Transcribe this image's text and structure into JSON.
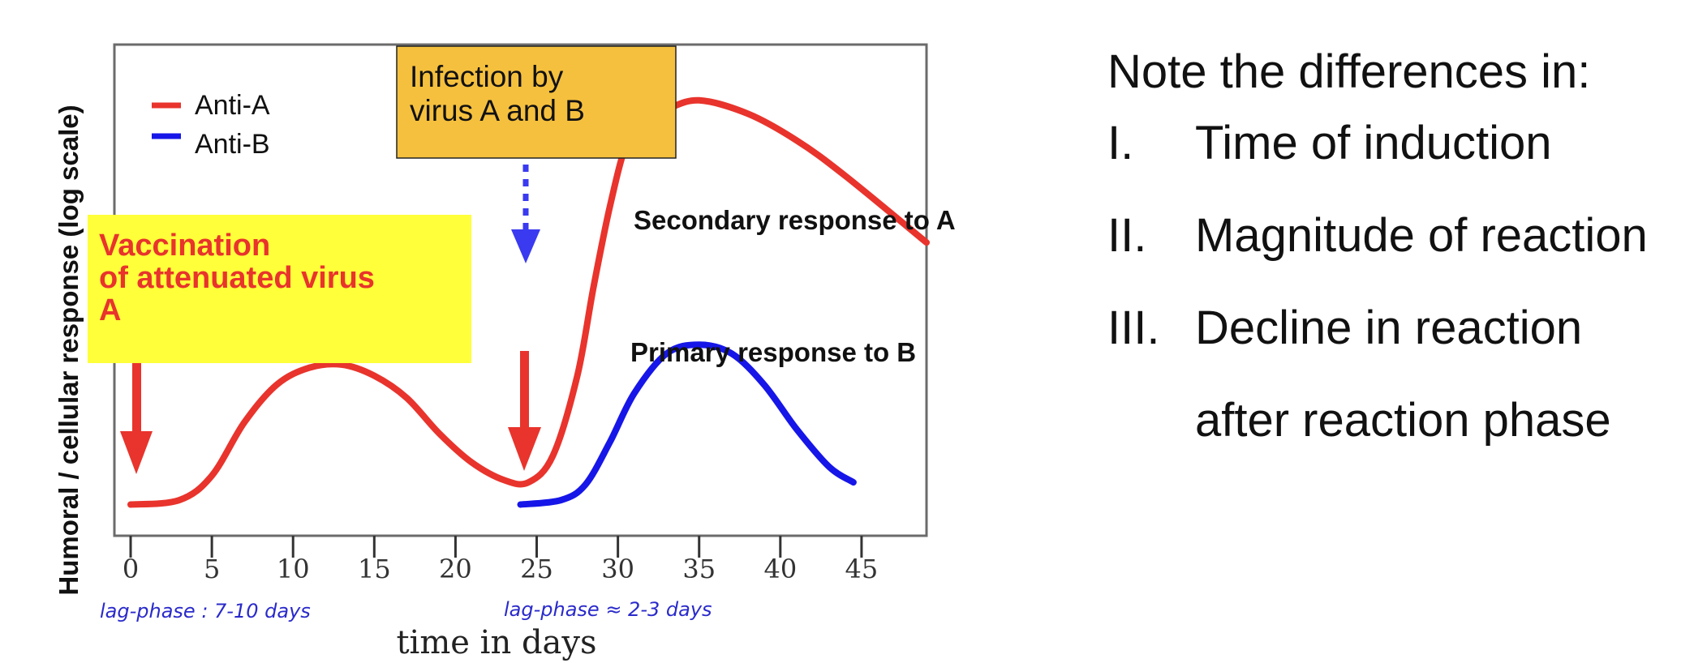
{
  "chart_data": {
    "type": "line",
    "title": "",
    "xlabel": "time in days",
    "ylabel": "Humoral / cellular response (log scale)",
    "x_ticks": [
      0,
      5,
      10,
      15,
      20,
      25,
      30,
      35,
      40,
      45
    ],
    "xlim": [
      -1,
      49
    ],
    "ylim": [
      0,
      10
    ],
    "y_scale": "log",
    "grid": false,
    "legend_position": "top-left",
    "series": [
      {
        "name": "Anti-A",
        "color": "#e8342c",
        "x": [
          0,
          3,
          5,
          7,
          9,
          11,
          13,
          15,
          17,
          19,
          21,
          23,
          24.5,
          26,
          27.5,
          28.5,
          29.5,
          30.5,
          31.5,
          33,
          35,
          38,
          41,
          44,
          49
        ],
        "y": [
          0.1,
          0.2,
          0.75,
          1.95,
          2.8,
          3.18,
          3.25,
          3.0,
          2.5,
          1.7,
          1.05,
          0.65,
          0.6,
          1.2,
          3.0,
          5.0,
          6.8,
          8.2,
          8.75,
          9.0,
          9.2,
          8.9,
          8.3,
          7.5,
          6.0
        ]
      },
      {
        "name": "Anti-B",
        "color": "#1616e8",
        "x": [
          24,
          26.5,
          28,
          29.5,
          31,
          33,
          35,
          37,
          39,
          41,
          43,
          44.5
        ],
        "y": [
          0.1,
          0.2,
          0.55,
          1.5,
          2.6,
          3.5,
          3.7,
          3.5,
          2.8,
          1.8,
          0.95,
          0.6
        ]
      }
    ],
    "annotations": {
      "vaccination": "Vaccination\nof attenuated virus\nA",
      "infection": "Infection by\nvirus A and B",
      "secondary": "Secondary response to A",
      "primary": "Primary response to B",
      "handnote_left": "lag-phase : 7-10 days",
      "handnote_right": "lag-phase ≈ 2-3 days"
    }
  },
  "notes": {
    "heading": "Note the differences in:",
    "items": [
      {
        "num": "I.",
        "text": "Time of induction"
      },
      {
        "num": "II.",
        "text": "Magnitude of reaction"
      },
      {
        "num": "III.",
        "text": "Decline in reaction",
        "cont": "after reaction phase"
      }
    ]
  }
}
